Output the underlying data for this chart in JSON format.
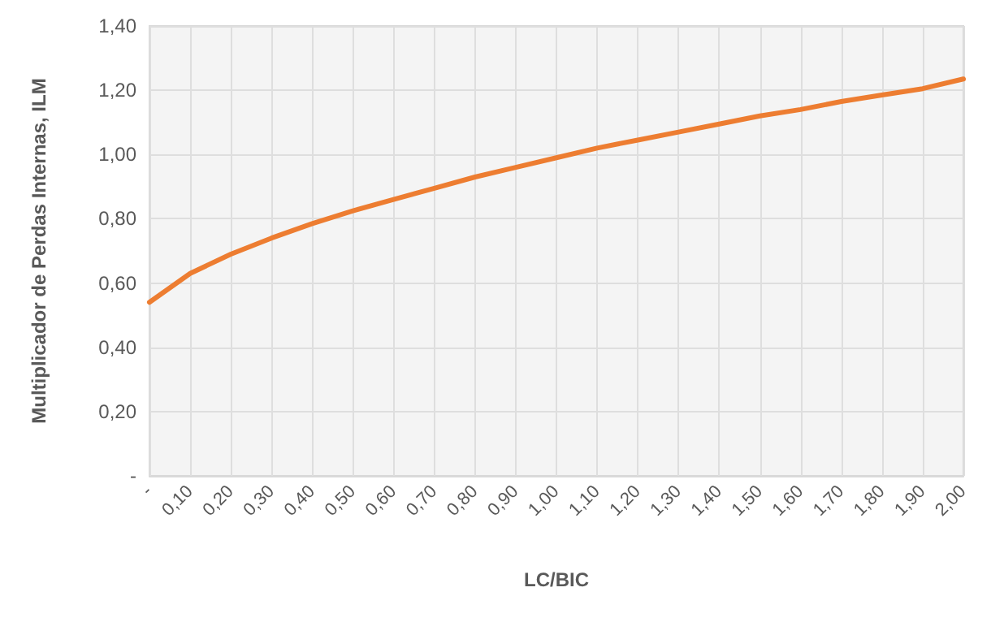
{
  "chart_data": {
    "type": "line",
    "xlabel": "LC/BIC",
    "ylabel": "Multiplicador de Perdas Internas, ILM",
    "categories": [
      "-",
      "0,10",
      "0,20",
      "0,30",
      "0,40",
      "0,50",
      "0,60",
      "0,70",
      "0,80",
      "0,90",
      "1,00",
      "1,10",
      "1,20",
      "1,30",
      "1,40",
      "1,50",
      "1,60",
      "1,70",
      "1,80",
      "1,90",
      "2,00"
    ],
    "series": [
      {
        "color": "#ed7d31",
        "values": [
          0.54,
          0.63,
          0.69,
          0.74,
          0.785,
          0.825,
          0.86,
          0.895,
          0.93,
          0.96,
          0.99,
          1.02,
          1.045,
          1.07,
          1.095,
          1.12,
          1.14,
          1.165,
          1.185,
          1.205,
          1.235
        ]
      }
    ],
    "ylim": [
      0,
      1.4
    ],
    "yticks": [
      {
        "value": 0,
        "label": "-"
      },
      {
        "value": 0.2,
        "label": "0,20"
      },
      {
        "value": 0.4,
        "label": "0,40"
      },
      {
        "value": 0.6,
        "label": "0,60"
      },
      {
        "value": 0.8,
        "label": "0,80"
      },
      {
        "value": 1,
        "label": "1,00"
      },
      {
        "value": 1.2,
        "label": "1,20"
      },
      {
        "value": 1.4,
        "label": "1,40"
      }
    ],
    "grid": true,
    "marker": "none",
    "line_style": "solid"
  }
}
